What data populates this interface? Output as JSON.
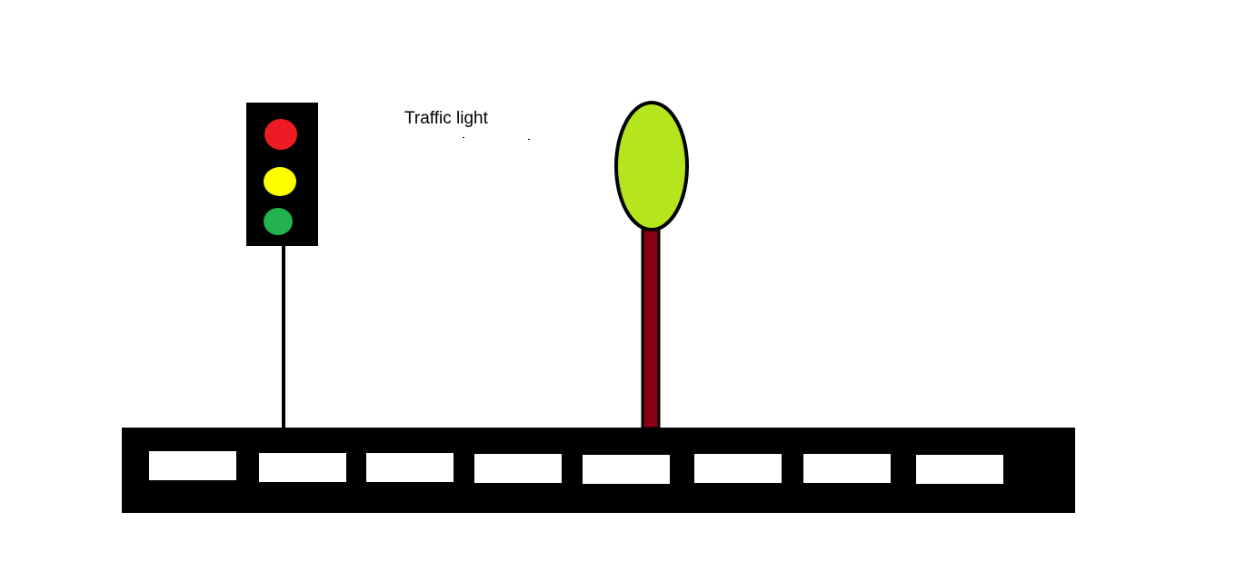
{
  "scene": {
    "caption": "Traffic light",
    "colors": {
      "background": "#ffffff",
      "road": "#000000",
      "lane_marking": "#ffffff",
      "signal_housing": "#000000",
      "signal_red": "#ed1c24",
      "signal_yellow": "#ffff00",
      "signal_green": "#22b14c",
      "tree_crown": "#b5e61d",
      "tree_trunk": "#880015"
    },
    "lane_marking_count": 8
  }
}
